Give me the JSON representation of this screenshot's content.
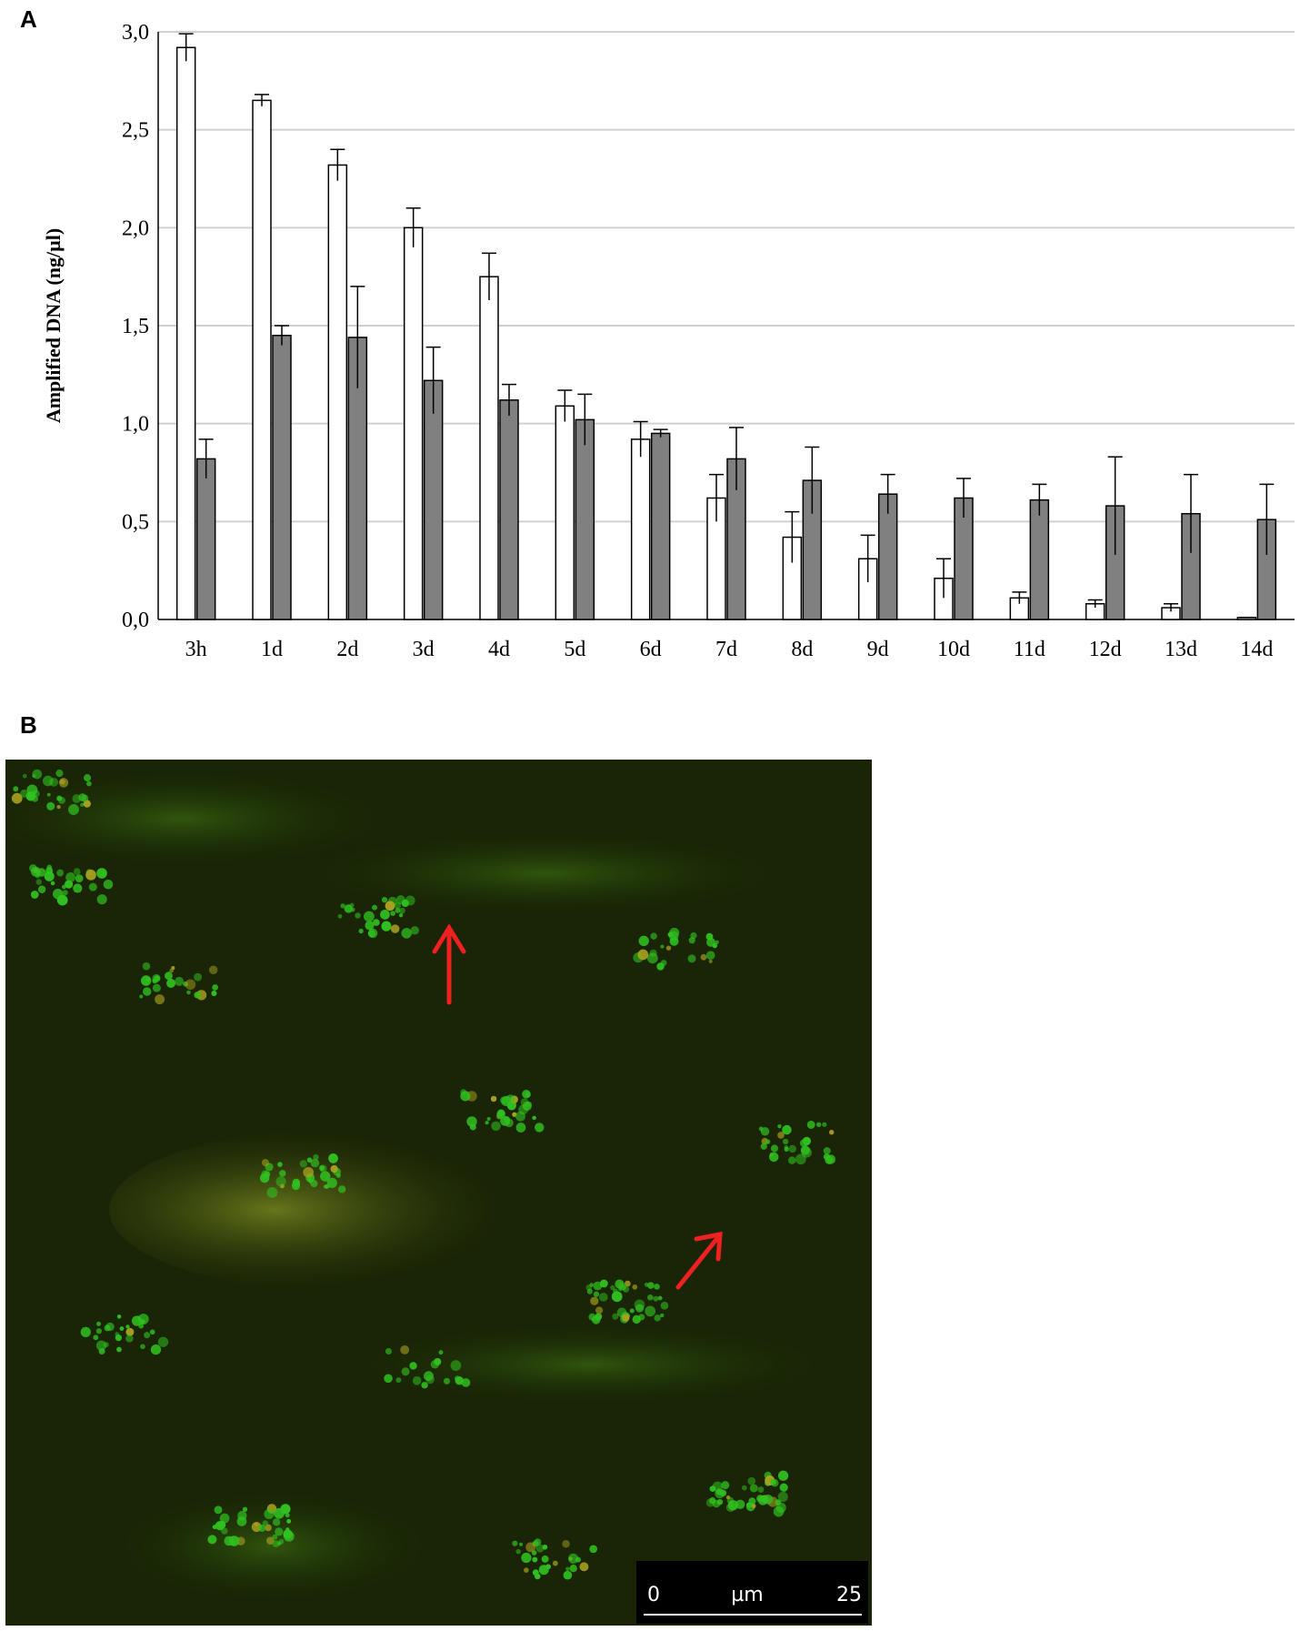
{
  "chart_data": {
    "type": "bar",
    "panel_label": "A",
    "y_label": "Amplified DNA (ng/µl)",
    "categories": [
      "3h",
      "1d",
      "2d",
      "3d",
      "4d",
      "5d",
      "6d",
      "7d",
      "8d",
      "9d",
      "10d",
      "11d",
      "12d",
      "13d",
      "14d"
    ],
    "series": [
      {
        "color": "#ffffff",
        "values": [
          2.92,
          2.65,
          2.32,
          2.0,
          1.75,
          1.09,
          0.92,
          0.62,
          0.42,
          0.31,
          0.21,
          0.11,
          0.08,
          0.06,
          0.01
        ],
        "errors": [
          0.07,
          0.03,
          0.08,
          0.1,
          0.12,
          0.08,
          0.09,
          0.12,
          0.13,
          0.12,
          0.1,
          0.03,
          0.02,
          0.02,
          0.0
        ]
      },
      {
        "color": "#808080",
        "values": [
          0.82,
          1.45,
          1.44,
          1.22,
          1.12,
          1.02,
          0.95,
          0.82,
          0.71,
          0.64,
          0.62,
          0.61,
          0.58,
          0.54,
          0.51
        ],
        "errors": [
          0.1,
          0.05,
          0.26,
          0.17,
          0.08,
          0.13,
          0.02,
          0.16,
          0.17,
          0.1,
          0.1,
          0.08,
          0.25,
          0.2,
          0.18
        ]
      }
    ],
    "ylim": [
      0,
      3
    ],
    "yticks": [
      {
        "value": 0,
        "label": "0,0"
      },
      {
        "value": 0.5,
        "label": "0,5"
      },
      {
        "value": 1,
        "label": "1,0"
      },
      {
        "value": 1.5,
        "label": "1,5"
      },
      {
        "value": 2,
        "label": "2,0"
      },
      {
        "value": 2.5,
        "label": "2,5"
      },
      {
        "value": 3,
        "label": "3,0"
      }
    ],
    "grid": true
  },
  "image": {
    "panel_label": "B",
    "scale_bar_labels": [
      "0",
      "µm",
      "25"
    ]
  }
}
